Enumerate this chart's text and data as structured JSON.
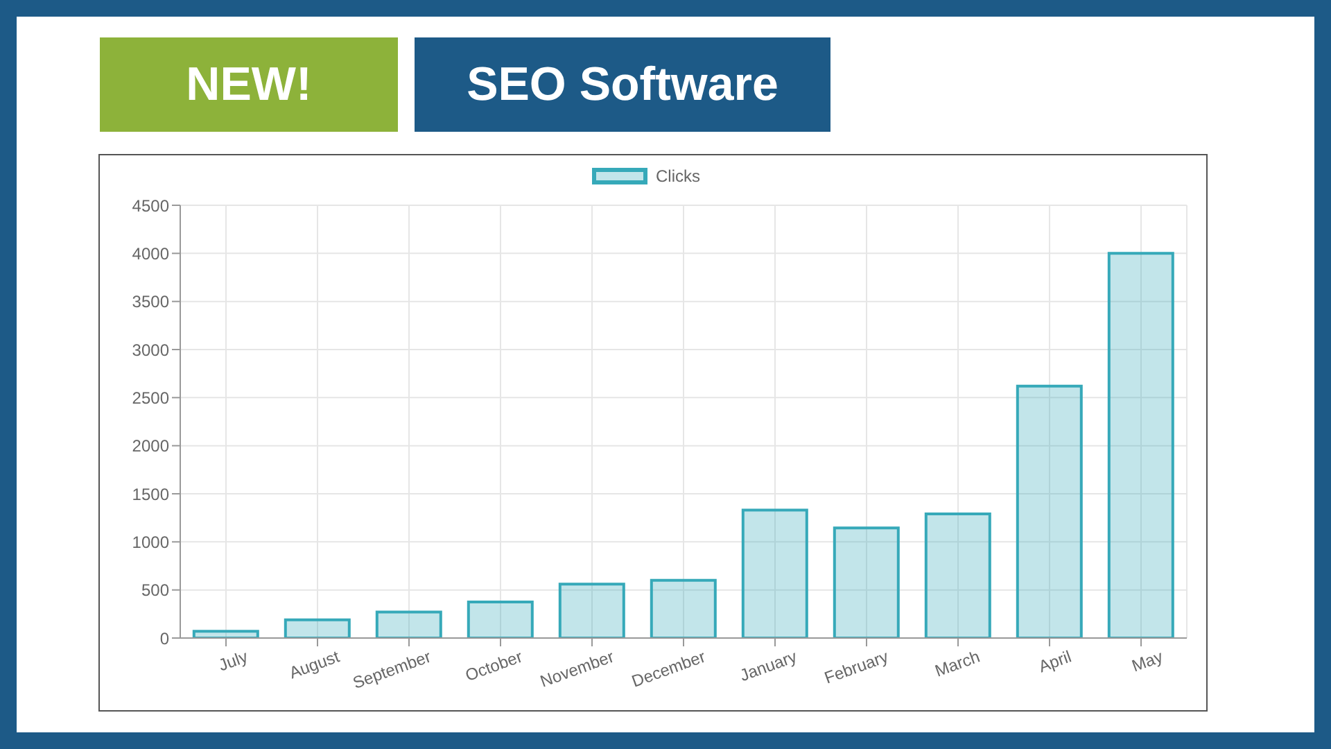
{
  "chart_data": {
    "type": "bar",
    "title": "SEO Software",
    "annotations": [
      "NEW!"
    ],
    "categories": [
      "July",
      "August",
      "September",
      "October",
      "November",
      "December",
      "January",
      "February",
      "March",
      "April",
      "May"
    ],
    "series": [
      {
        "name": "Clicks",
        "color": "#36a9b9",
        "values": [
          70,
          190,
          270,
          375,
          560,
          600,
          1330,
          1145,
          1290,
          2620,
          4000
        ]
      }
    ],
    "ylim": [
      0,
      4500
    ],
    "yticks": [
      0,
      500,
      1000,
      1500,
      2000,
      2500,
      3000,
      3500,
      4000,
      4500
    ],
    "grid": true,
    "legend": "top"
  }
}
